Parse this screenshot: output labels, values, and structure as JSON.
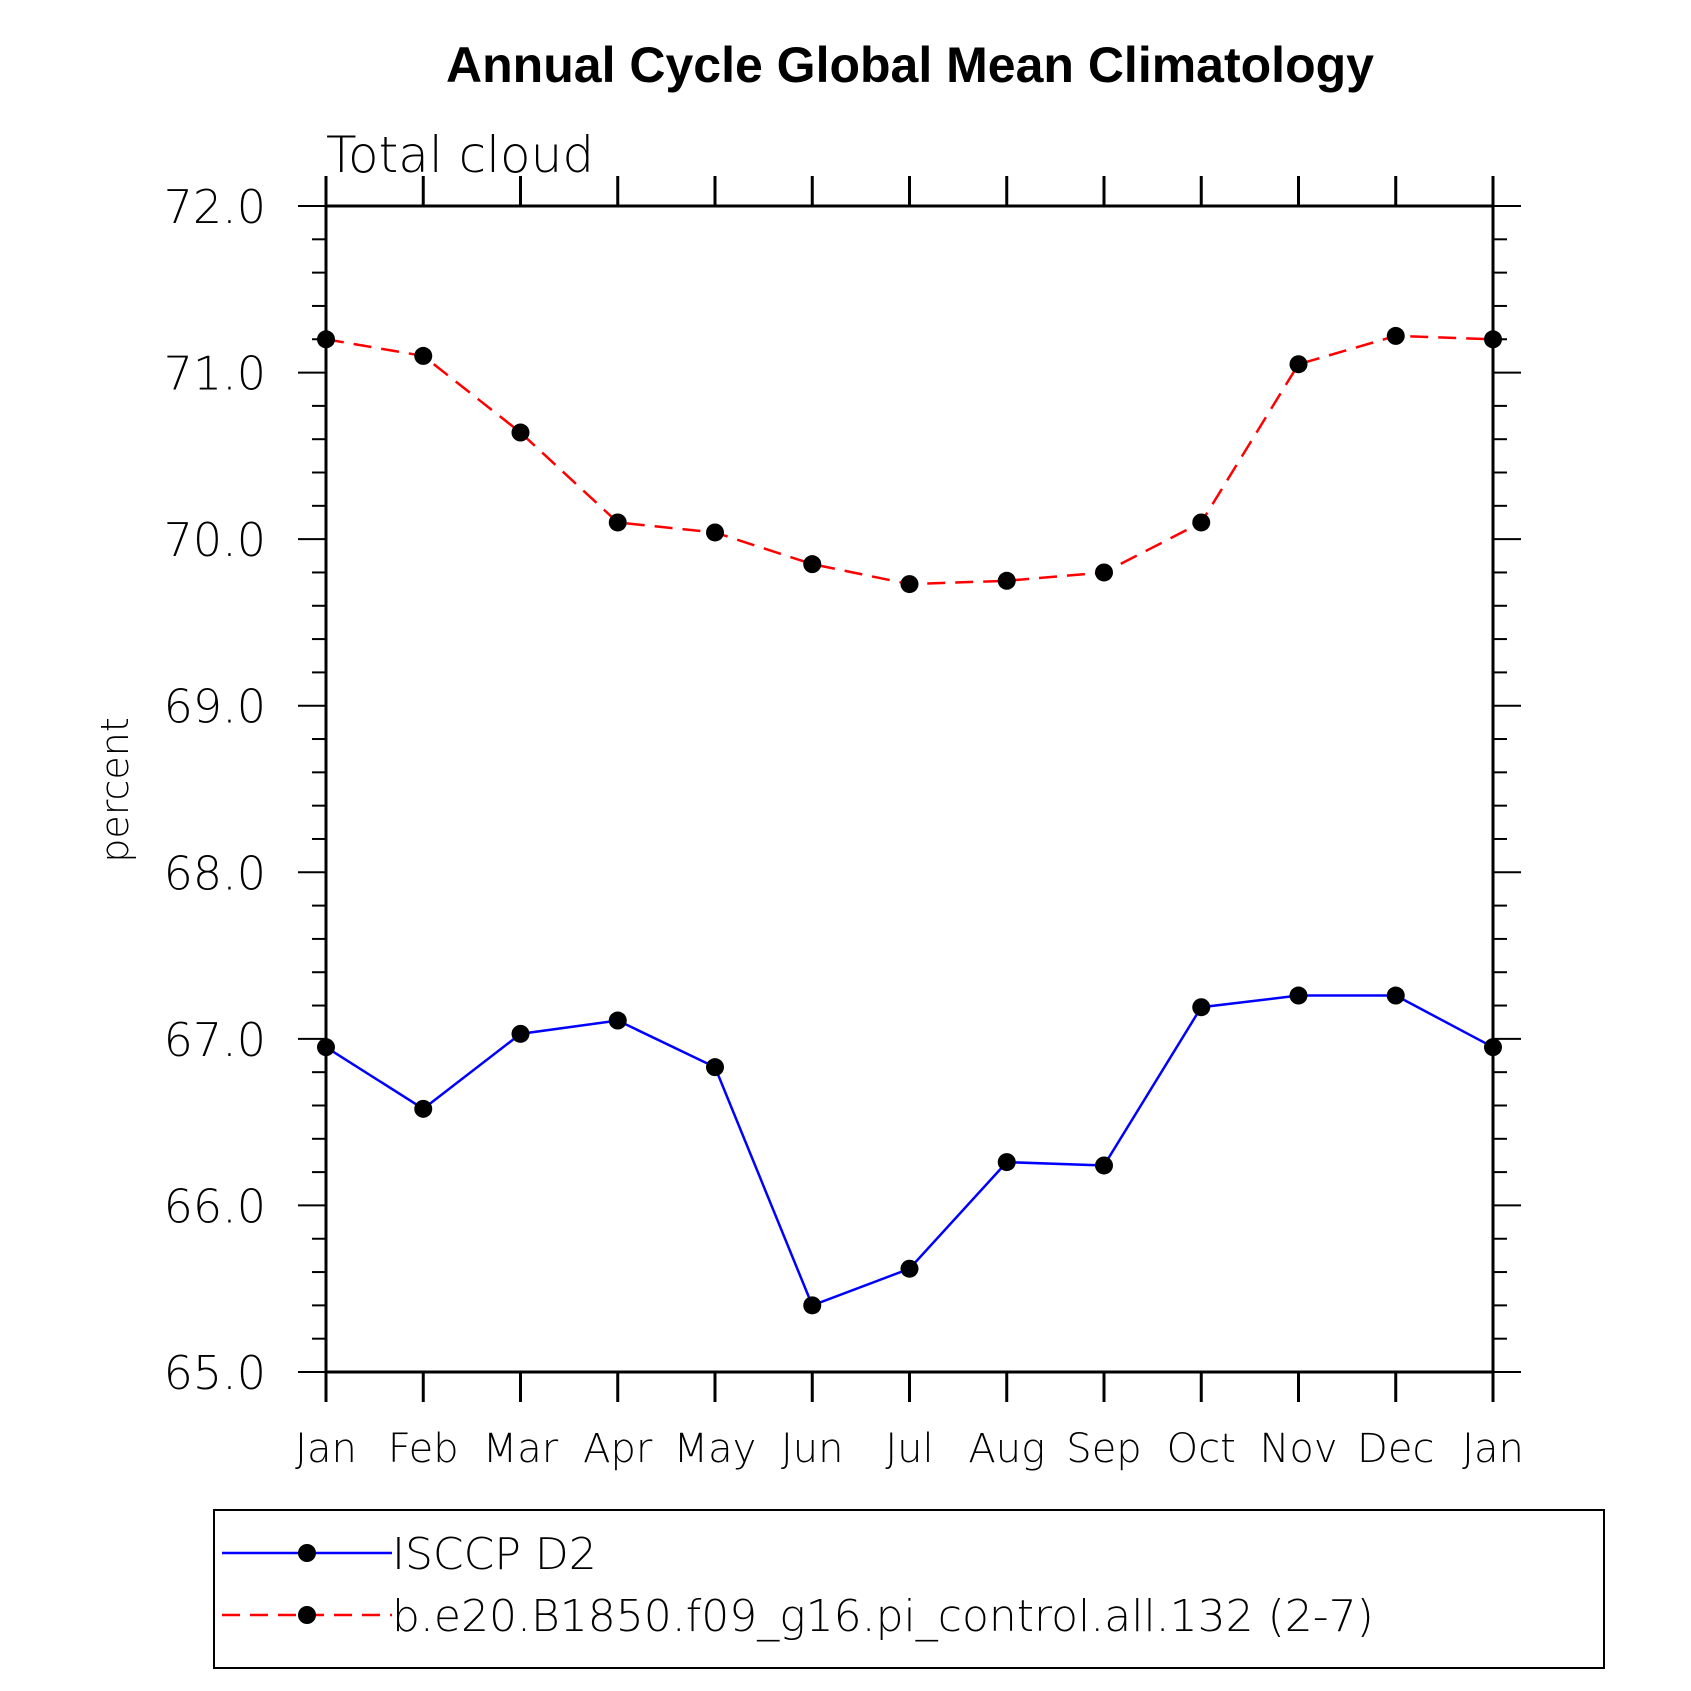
{
  "chart_data": {
    "type": "line",
    "title": "Annual Cycle Global Mean Climatology",
    "subtitle": "Total cloud",
    "ylabel": "percent",
    "xlabel": "",
    "categories": [
      "Jan",
      "Feb",
      "Mar",
      "Apr",
      "May",
      "Jun",
      "Jul",
      "Aug",
      "Sep",
      "Oct",
      "Nov",
      "Dec",
      "Jan"
    ],
    "ylim": [
      65.0,
      72.0
    ],
    "yticks": [
      "65.0",
      "66.0",
      "67.0",
      "68.0",
      "69.0",
      "70.0",
      "71.0",
      "72.0"
    ],
    "grid": false,
    "legend_position": "bottom",
    "series": [
      {
        "name": "ISCCP D2",
        "color": "#0000ff",
        "line_style": "solid",
        "marker": "filled-circle",
        "values": [
          66.95,
          66.58,
          67.03,
          67.11,
          66.83,
          65.4,
          65.62,
          66.26,
          66.24,
          67.19,
          67.26,
          67.26,
          66.95
        ]
      },
      {
        "name": "b.e20.B1850.f09_g16.pi_control.all.132 (2-7)",
        "color": "#ff0000",
        "line_style": "dashed",
        "marker": "filled-circle",
        "values": [
          71.2,
          71.1,
          70.64,
          70.1,
          70.04,
          69.85,
          69.73,
          69.75,
          69.8,
          70.1,
          71.05,
          71.22,
          71.2
        ]
      }
    ]
  }
}
